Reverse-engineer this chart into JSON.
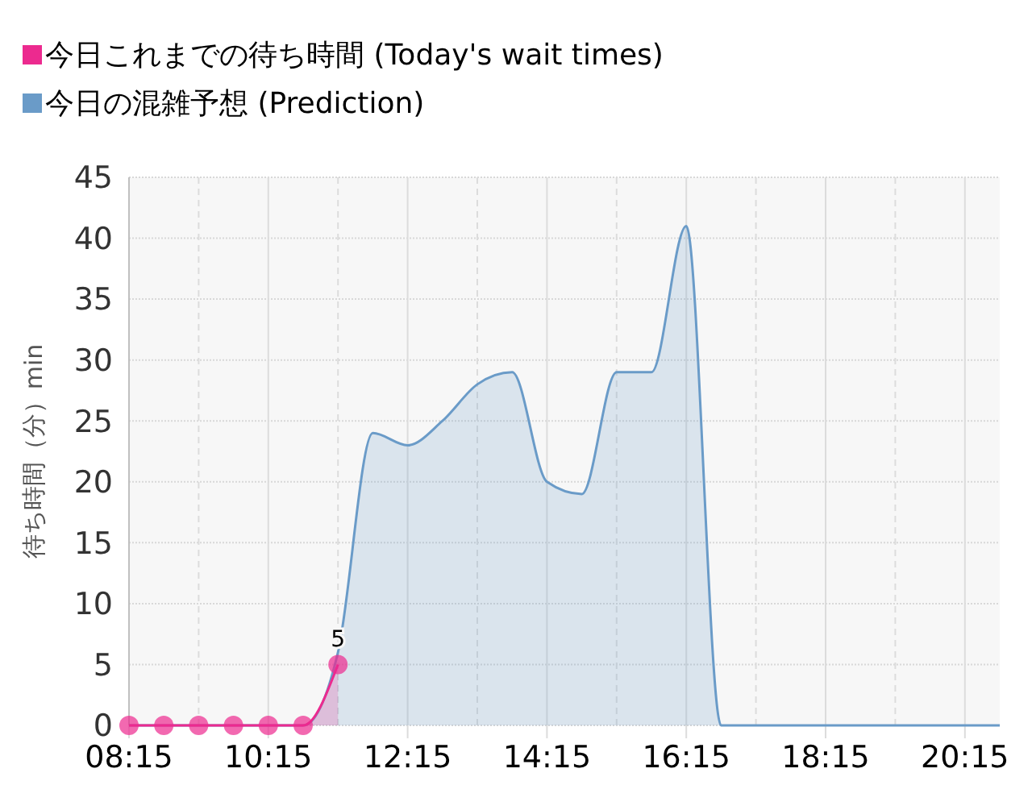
{
  "chart_data": {
    "type": "area",
    "ylabel": "待ち時間（分）min",
    "xlim": [
      8.25,
      20.75
    ],
    "xticks": [
      {
        "value": 8.25,
        "label": "08:15"
      },
      {
        "value": 10.25,
        "label": "10:15"
      },
      {
        "value": 12.25,
        "label": "12:15"
      },
      {
        "value": 14.25,
        "label": "14:15"
      },
      {
        "value": 16.25,
        "label": "16:15"
      },
      {
        "value": 18.25,
        "label": "18:15"
      },
      {
        "value": 20.25,
        "label": "20:15"
      }
    ],
    "ylim": [
      0,
      45
    ],
    "yticks": [
      0,
      5,
      10,
      15,
      20,
      25,
      30,
      35,
      40,
      45
    ],
    "grid": true,
    "legend": "top left",
    "series": [
      {
        "name": "今日これまでの待ち時間 (Today's wait times)",
        "color": "#ec2a8f",
        "marker": "circle",
        "x": [
          8.25,
          8.75,
          9.25,
          9.75,
          10.25,
          10.75,
          11.25
        ],
        "values": [
          0,
          0,
          0,
          0,
          0,
          0,
          5
        ],
        "value_labels": [
          null,
          null,
          null,
          null,
          null,
          null,
          "5"
        ]
      },
      {
        "name": "今日の混雑予想 (Prediction)",
        "color": "#6a9bc8",
        "marker": "none",
        "x": [
          8.25,
          8.75,
          9.25,
          9.75,
          10.25,
          10.75,
          11.25,
          11.75,
          12.25,
          12.75,
          13.25,
          13.75,
          14.25,
          14.75,
          15.25,
          15.75,
          16.25,
          16.75,
          17.25,
          17.75,
          18.25,
          18.75,
          19.25,
          19.75,
          20.25,
          20.75
        ],
        "values": [
          0,
          0,
          0,
          0,
          0,
          0,
          6,
          24,
          23,
          25,
          28,
          29,
          20,
          19,
          29,
          29,
          41,
          0,
          0,
          0,
          0,
          0,
          0,
          0,
          0,
          0
        ]
      }
    ]
  }
}
